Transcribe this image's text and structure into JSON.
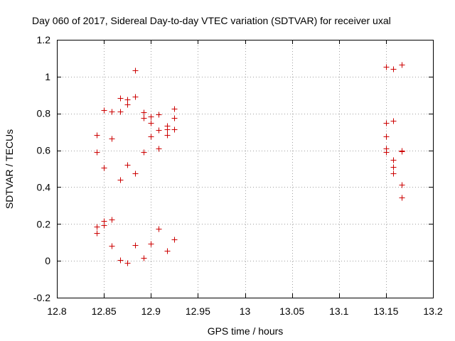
{
  "chart_data": {
    "type": "scatter",
    "title": "Day 060 of 2017, Sidereal Day-to-day VTEC variation (SDTVAR) for receiver uxal",
    "xlabel": "GPS time / hours",
    "ylabel": "SDTVAR / TECUs",
    "xlim": [
      12.8,
      13.2
    ],
    "ylim": [
      -0.2,
      1.2
    ],
    "xticks": [
      12.8,
      12.85,
      12.9,
      12.95,
      13.0,
      13.05,
      13.1,
      13.15,
      13.2
    ],
    "xtick_labels": [
      "12.8",
      "12.85",
      "12.9",
      "12.95",
      "13",
      "13.05",
      "13.1",
      "13.15",
      "13.2"
    ],
    "yticks": [
      -0.2,
      0,
      0.2,
      0.4,
      0.6,
      0.8,
      1.0,
      1.2
    ],
    "ytick_labels": [
      "-0.2",
      "0",
      "0.2",
      "0.4",
      "0.6",
      "0.8",
      "1",
      "1.2"
    ],
    "grid": true,
    "marker": "+",
    "marker_color": "#cc0000",
    "series": [
      {
        "name": "SDTVAR",
        "x": [
          12.842,
          12.842,
          12.842,
          12.842,
          12.85,
          12.85,
          12.85,
          12.85,
          12.858,
          12.858,
          12.858,
          12.858,
          12.867,
          12.867,
          12.867,
          12.867,
          12.875,
          12.875,
          12.875,
          12.875,
          12.883,
          12.883,
          12.883,
          12.883,
          12.892,
          12.892,
          12.892,
          12.892,
          12.9,
          12.9,
          12.9,
          12.9,
          12.908,
          12.908,
          12.908,
          12.908,
          12.917,
          12.917,
          12.917,
          12.917,
          12.925,
          12.925,
          12.925,
          12.925,
          13.15,
          13.15,
          13.15,
          13.15,
          13.15,
          13.158,
          13.158,
          13.158,
          13.158,
          13.158,
          13.167,
          13.167,
          13.167,
          13.167,
          13.167
        ],
        "y": [
          0.685,
          0.59,
          0.185,
          0.15,
          0.82,
          0.505,
          0.215,
          0.195,
          0.81,
          0.665,
          0.225,
          0.08,
          0.885,
          0.81,
          0.44,
          0.005,
          0.875,
          0.85,
          0.52,
          -0.01,
          1.035,
          0.89,
          0.475,
          0.085,
          0.805,
          0.775,
          0.59,
          0.015,
          0.785,
          0.75,
          0.675,
          0.095,
          0.795,
          0.71,
          0.61,
          0.175,
          0.735,
          0.715,
          0.685,
          0.055,
          0.825,
          0.775,
          0.715,
          0.115,
          1.055,
          0.75,
          0.675,
          0.61,
          0.59,
          1.04,
          0.76,
          0.55,
          0.51,
          0.475,
          1.065,
          0.6,
          0.595,
          0.415,
          0.345
        ]
      }
    ]
  }
}
